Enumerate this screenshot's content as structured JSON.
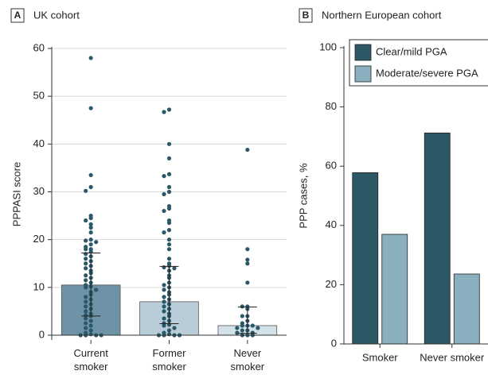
{
  "chart_data": [
    {
      "type": "bar",
      "label": "A",
      "title": "UK cohort",
      "y_label": "PPPASI score",
      "categories": [
        "Current smoker",
        "Former smoker",
        "Never smoker"
      ],
      "values": [
        10.5,
        7,
        2
      ],
      "error_low": [
        4,
        2.4,
        0.4
      ],
      "error_high": [
        17.2,
        14.4,
        5.9
      ],
      "colors": [
        "#6e93a6",
        "#b8cdd7",
        "#d3e2e9"
      ],
      "point_color": "#2a5868",
      "points": [
        [
          58,
          47.5,
          33.5,
          31,
          30.2,
          25,
          24.5,
          24,
          23.2,
          22.5,
          21.5,
          20,
          19.8,
          19.5,
          19,
          18.5,
          18,
          18,
          17.5,
          17,
          16.5,
          16,
          15.5,
          15,
          14.5,
          14,
          13.5,
          13,
          12.5,
          12,
          11.5,
          11,
          10.5,
          10.2,
          10,
          9.5,
          9,
          8.5,
          8,
          7.5,
          7,
          6.5,
          6,
          5.5,
          5,
          4.5,
          4.2,
          4,
          3.5,
          3,
          2.5,
          2,
          1.5,
          1,
          0.5,
          0.2,
          0,
          0,
          0,
          0
        ],
        [
          47.2,
          46.7,
          40,
          37,
          33.7,
          33.3,
          31,
          30,
          29.5,
          27,
          26.5,
          26,
          24,
          23.5,
          22,
          21.5,
          20,
          19,
          18,
          16,
          15,
          14.5,
          14.2,
          14,
          13.5,
          12.5,
          12,
          11,
          10.5,
          10,
          9.5,
          9,
          8.5,
          8,
          7.5,
          7,
          6.5,
          6,
          5.5,
          5,
          4.5,
          4,
          3.5,
          3,
          2.5,
          2.2,
          2,
          1.5,
          1,
          0.5,
          0.2,
          0,
          0,
          0,
          0
        ],
        [
          38.8,
          18,
          15.8,
          15,
          11,
          6,
          6,
          5.5,
          4,
          4,
          3,
          2.5,
          2,
          2,
          2,
          1.5,
          1.5,
          1,
          1,
          0.5,
          0.5,
          0,
          0,
          0
        ]
      ],
      "ylim": [
        -1,
        60
      ],
      "yticks": [
        0,
        10,
        20,
        30,
        40,
        50,
        60
      ],
      "grid": true
    },
    {
      "type": "bar",
      "label": "B",
      "title": "Northern European cohort",
      "y_label": "PPP cases, %",
      "categories": [
        "Smoker",
        "Never smoker"
      ],
      "series": [
        {
          "name": "Clear/mild PGA",
          "color": "#2d5866",
          "values": [
            57.8,
            71.2
          ]
        },
        {
          "name": "Moderate/severe PGA",
          "color": "#8aafbe",
          "values": [
            37,
            23.6
          ]
        }
      ],
      "ylim": [
        0,
        100
      ],
      "yticks": [
        0,
        20,
        40,
        60,
        80,
        100
      ],
      "grid": false,
      "legend": "top"
    }
  ]
}
